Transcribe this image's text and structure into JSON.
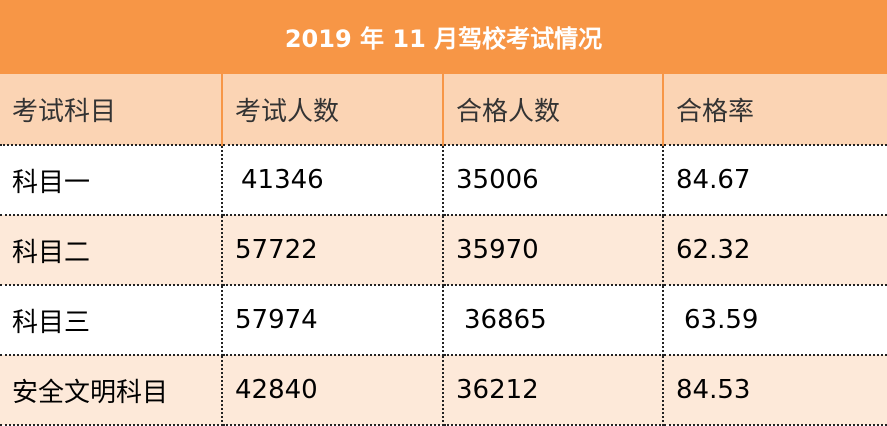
{
  "title": "2019 年 11 月驾校考试情况",
  "headers": [
    "考试科目",
    "考试人数",
    "合格人数",
    "合格率"
  ],
  "rows": [
    [
      "科目一",
      "41346",
      "35006",
      "84.67"
    ],
    [
      "科目二",
      "57722",
      "35970",
      "62.32"
    ],
    [
      "科目三",
      "57974",
      "36865",
      "63.59"
    ],
    [
      "安全文明科目",
      "42840",
      "36212",
      "84.53"
    ]
  ],
  "colors": {
    "title_bg": "#F79646",
    "header_bg": "#FBD4B4",
    "alt_row_bg": "#FDE9D9"
  }
}
